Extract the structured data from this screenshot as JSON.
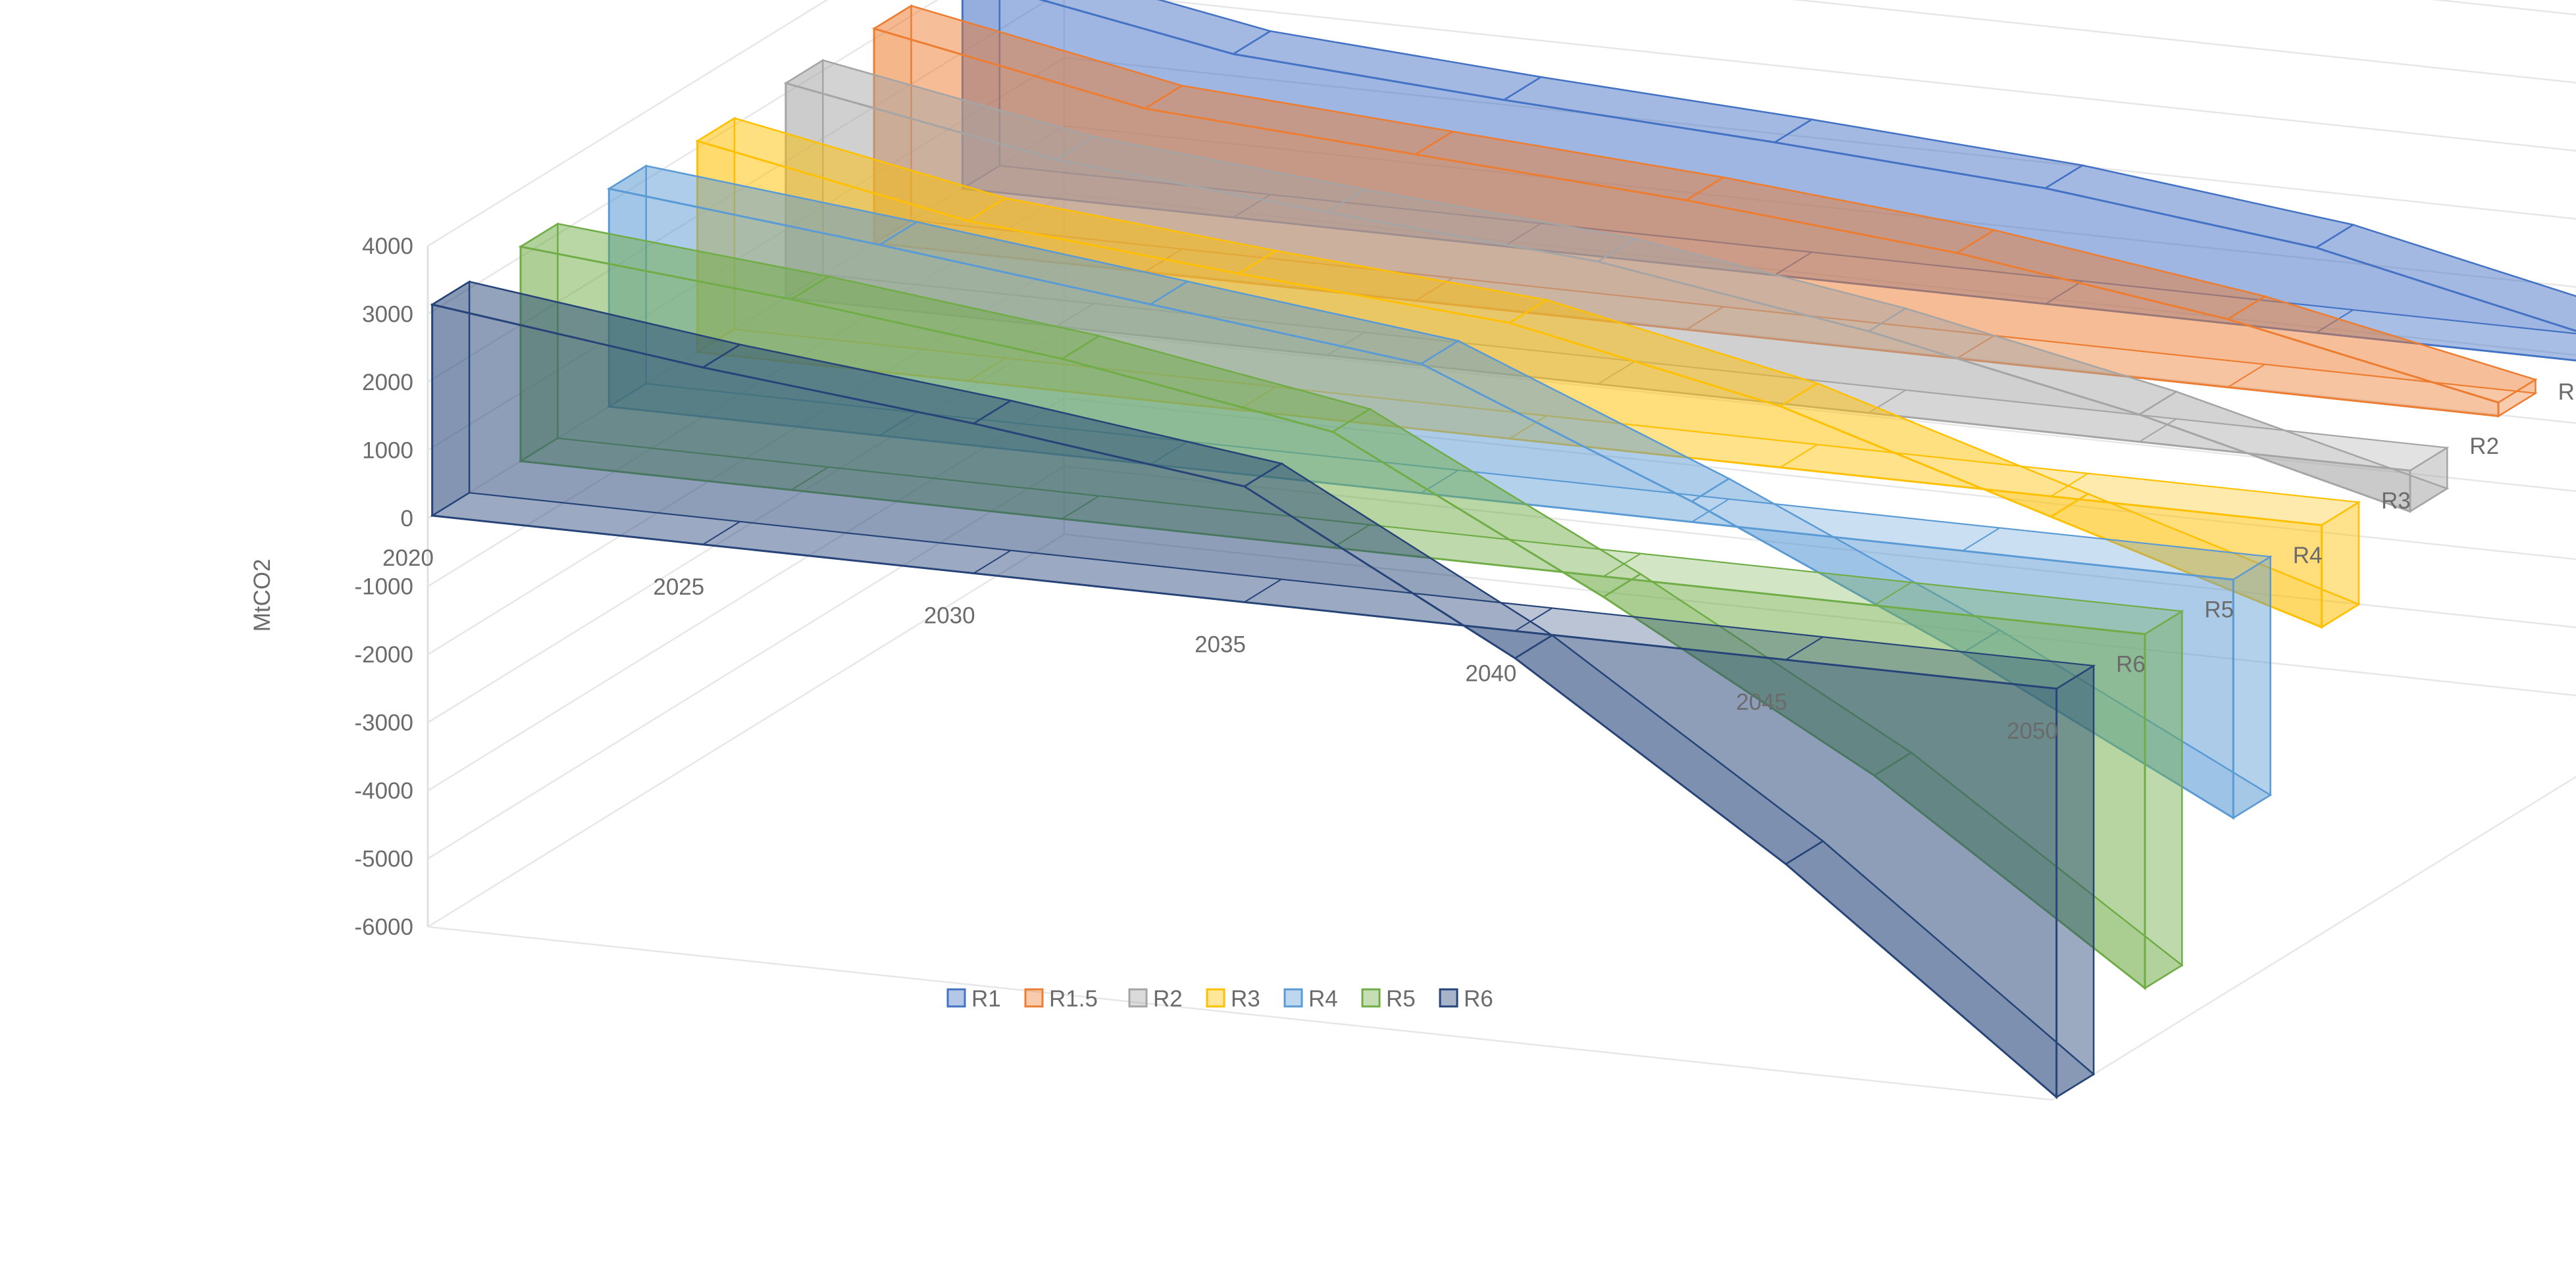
{
  "chart_data": {
    "type": "area",
    "variant": "3d-ribbon",
    "ylabel": "MtCO2",
    "xlabel": "",
    "title": "",
    "x": [
      2020,
      2025,
      2030,
      2035,
      2040,
      2045,
      2050
    ],
    "x_tick_labels": [
      "2020",
      "2025",
      "2030",
      "2035",
      "2040",
      "2045",
      "2050"
    ],
    "ylim": [
      -6000,
      4000
    ],
    "y_ticks": [
      4000,
      3000,
      2000,
      1000,
      0,
      -1000,
      -2000,
      -3000,
      -4000,
      -5000,
      -6000
    ],
    "y_tick_labels": [
      "4000",
      "3000",
      "2000",
      "1000",
      "0",
      "-1000",
      "-2000",
      "-3000",
      "-4000",
      "-5000",
      "-6000"
    ],
    "grid": true,
    "legend_position": "bottom",
    "series": [
      {
        "name": "R1",
        "color": "#4472C4",
        "values": [
          3100,
          2400,
          2150,
          1950,
          1700,
          1250,
          400
        ]
      },
      {
        "name": "R1.5",
        "color": "#ED7D31",
        "values": [
          3150,
          2400,
          2150,
          1900,
          1550,
          1000,
          200
        ]
      },
      {
        "name": "R2",
        "color": "#A5A5A5",
        "values": [
          3150,
          2450,
          2100,
          1800,
          1200,
          400,
          -600
        ]
      },
      {
        "name": "R3",
        "color": "#FFC000",
        "values": [
          3100,
          2350,
          2000,
          1700,
          900,
          -300,
          -1500
        ]
      },
      {
        "name": "R4",
        "color": "#5B9BD5",
        "values": [
          3200,
          2800,
          2350,
          1900,
          300,
          -1500,
          -3500
        ]
      },
      {
        "name": "R5",
        "color": "#70AD47",
        "values": [
          3150,
          2800,
          2350,
          1700,
          -300,
          -2500,
          -5200
        ]
      },
      {
        "name": "R6",
        "color": "#264478",
        "values": [
          3100,
          2600,
          2200,
          1700,
          -400,
          -3000,
          -6000
        ]
      }
    ]
  }
}
